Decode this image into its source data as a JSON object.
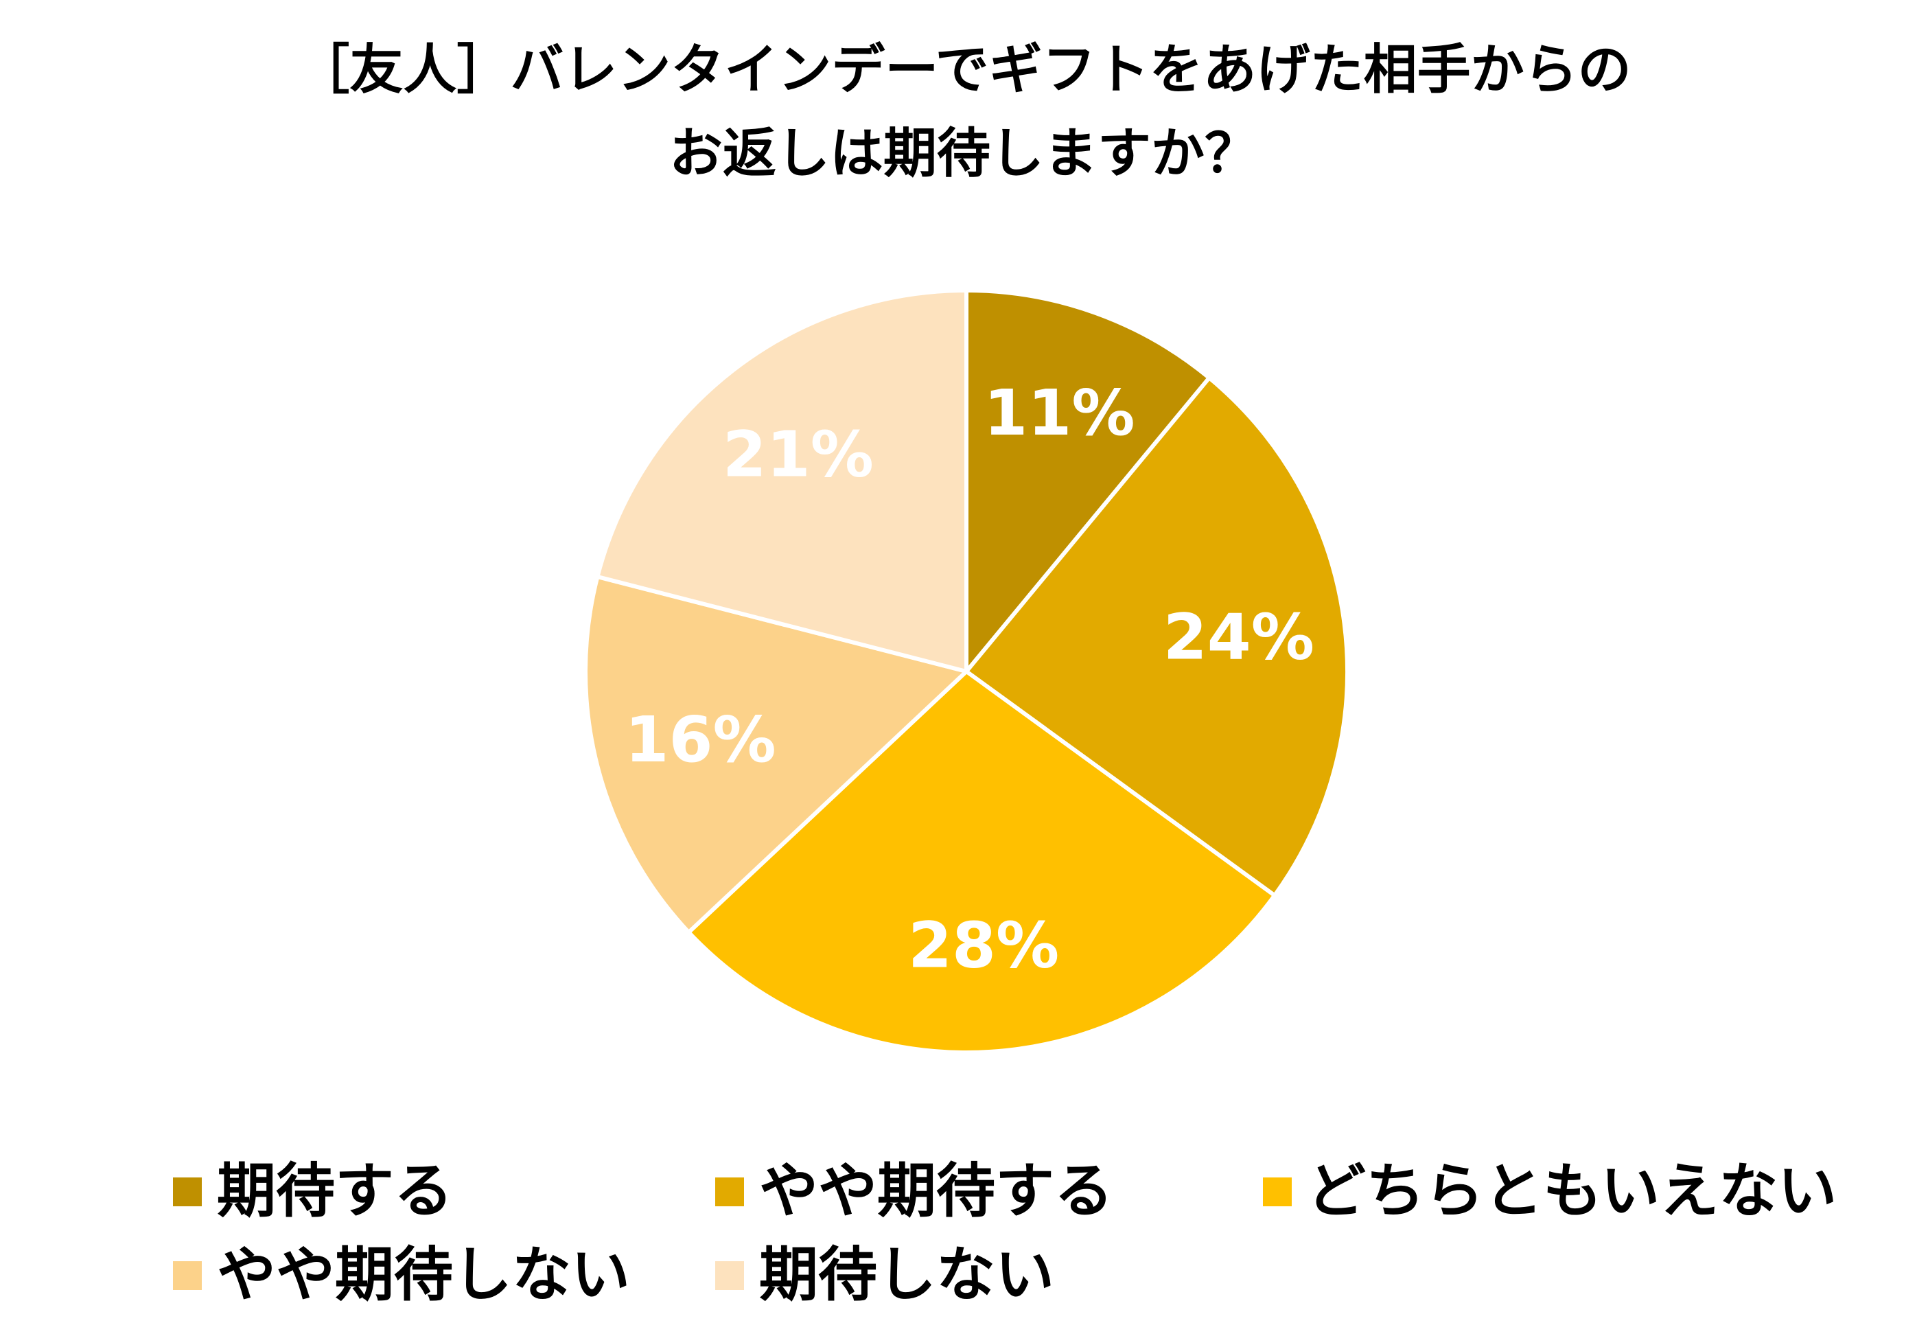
{
  "chart_data": {
    "type": "pie",
    "title_lines": [
      "［友人］バレンタインデーでギフトをあげた相手からの",
      "お返しは期待しますか？"
    ],
    "categories": [
      "期待する",
      "やや期待する",
      "どちらともいえない",
      "やや期待しない",
      "期待しない"
    ],
    "values": [
      11,
      24,
      28,
      16,
      21
    ],
    "value_labels": [
      "11%",
      "24%",
      "28%",
      "16%",
      "21%"
    ],
    "unit": "%",
    "colors": [
      "#BF9000",
      "#E2AA00",
      "#FFC000",
      "#FCD28A",
      "#FDE2BE"
    ],
    "start_angle": "12 o'clock",
    "direction": "clockwise",
    "legend_position": "bottom"
  }
}
